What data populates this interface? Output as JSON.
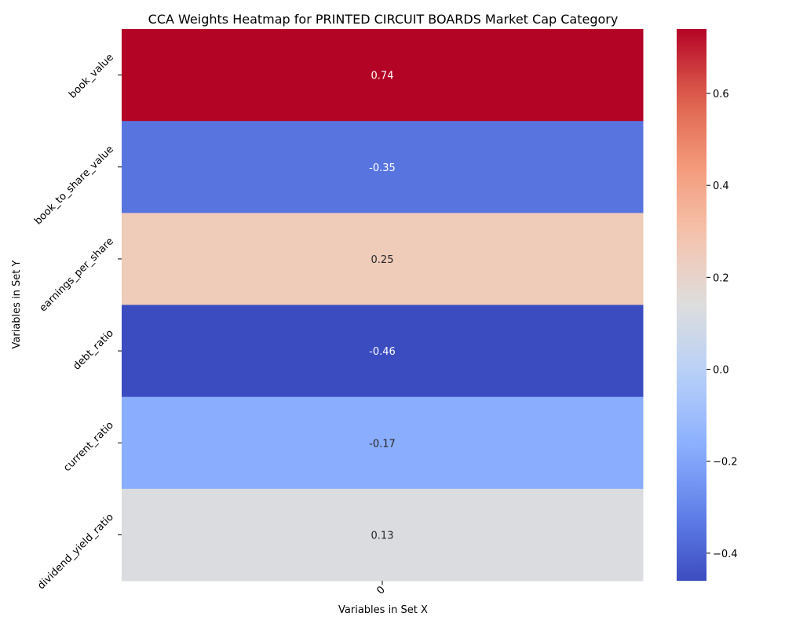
{
  "chart_data": {
    "type": "heatmap",
    "title": "CCA Weights Heatmap for PRINTED CIRCUIT BOARDS Market Cap Category",
    "xlabel": "Variables in Set X",
    "ylabel": "Variables in Set Y",
    "x_categories": [
      "0"
    ],
    "y_categories": [
      "book_value",
      "book_to_share_value",
      "earnings_per_share",
      "debt_ratio",
      "current_ratio",
      "dividend_yield_ratio"
    ],
    "values": [
      [
        0.74
      ],
      [
        -0.35
      ],
      [
        0.25
      ],
      [
        -0.46
      ],
      [
        -0.17
      ],
      [
        0.13
      ]
    ],
    "value_labels": [
      "0.74",
      "-0.35",
      "0.25",
      "-0.46",
      "-0.17",
      "0.13"
    ],
    "colormap": "coolwarm",
    "vmin": -0.46,
    "vmax": 0.74,
    "colorbar_ticks": [
      -0.4,
      -0.2,
      0.0,
      0.2,
      0.4,
      0.6
    ],
    "colorbar_tick_labels": [
      "−0.4",
      "−0.2",
      "0.0",
      "0.2",
      "0.4",
      "0.6"
    ]
  }
}
